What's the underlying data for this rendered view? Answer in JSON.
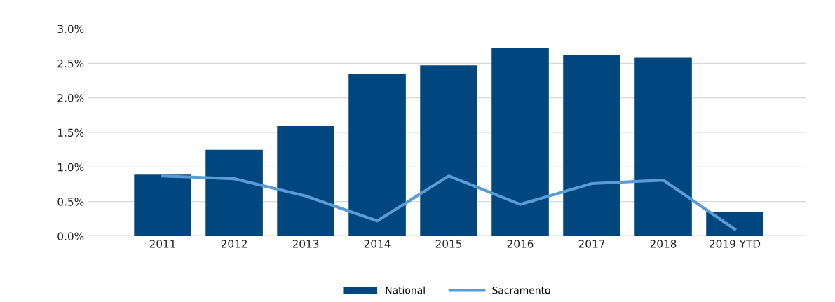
{
  "chart_data": {
    "type": "bar",
    "categories": [
      "2011",
      "2012",
      "2013",
      "2014",
      "2015",
      "2016",
      "2017",
      "2018",
      "2019 YTD"
    ],
    "series": [
      {
        "name": "National",
        "color": "#00467f",
        "values": [
          0.89,
          1.25,
          1.59,
          2.35,
          2.47,
          2.72,
          2.62,
          2.58,
          0.35
        ]
      },
      {
        "name": "Sacramento",
        "type": "line",
        "color": "#5b9bd5",
        "values": [
          0.87,
          0.83,
          0.58,
          0.22,
          0.87,
          0.46,
          0.76,
          0.81,
          0.1
        ]
      }
    ],
    "ylim": [
      0,
      3
    ],
    "yticks": [
      {
        "value": 0,
        "label": "0.0%"
      },
      {
        "value": 0.5,
        "label": "0.5%"
      },
      {
        "value": 1,
        "label": "1.0%"
      },
      {
        "value": 1.5,
        "label": "1.5%"
      },
      {
        "value": 2,
        "label": "2.0%"
      },
      {
        "value": 2.5,
        "label": "2.5%"
      },
      {
        "value": 3,
        "label": "3.0%"
      }
    ],
    "grid": "y",
    "legend": "bottom",
    "line_style": "solid",
    "marker": "none"
  }
}
